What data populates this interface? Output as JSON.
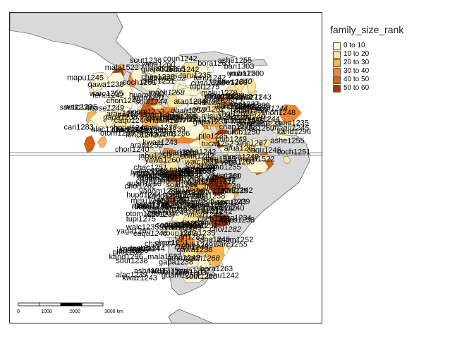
{
  "map": {
    "legend": {
      "title": "family_size_rank",
      "items": [
        {
          "label": "0 to 10",
          "color": "#fff7d6"
        },
        {
          "label": "10 to 20",
          "color": "#fee39a"
        },
        {
          "label": "20 to 30",
          "color": "#fdb652"
        },
        {
          "label": "30 to 40",
          "color": "#f7882a"
        },
        {
          "label": "40 to 50",
          "color": "#d95f0e"
        },
        {
          "label": "50 to 60",
          "color": "#a63603"
        }
      ]
    },
    "scale_bar": {
      "ticks": [
        "0",
        "1000",
        "2000",
        "3000 km"
      ]
    },
    "colors": {
      "land": "#d9d9d9",
      "ocean": "#ffffff",
      "outline": "#333333",
      "graticule": "#888888"
    },
    "labels": [
      "mala1522",
      "coun1242",
      "warc1255",
      "chac1251",
      "guam1250",
      "caqu1246",
      "sout1236",
      "ataq1234",
      "anam1252",
      "bari1303",
      "mach1268",
      "cari1283",
      "hupd1244",
      "secu1239",
      "arua1261",
      "yawa1260",
      "tupi1275",
      "maku1278",
      "saha1240",
      "sout1238",
      "soul1244",
      "pilo1235",
      "arau1255",
      "mapu1245",
      "chon1248",
      "qawa1238",
      "alac1239",
      "kaws1240",
      "chon1240",
      "yaga1260",
      "ches1238",
      "tehu1242",
      "huam1247",
      "chim1312",
      "waic1235",
      "arhu1242",
      "bora1263",
      "kwaz1243",
      "coch1251",
      "yanom1239",
      "guah1250",
      "jabu1255",
      "chap1271",
      "urub1250",
      "mose1249",
      "kand1296",
      "ashe1255",
      "tuca1252",
      "sali1253",
      "otom1299",
      "xinc1237",
      "lenc1242",
      "misu1242",
      "taru1235",
      "chol1282",
      "cuna1235",
      "chib1249",
      "embe1260",
      "arua1262",
      "gapa1238"
    ]
  }
}
